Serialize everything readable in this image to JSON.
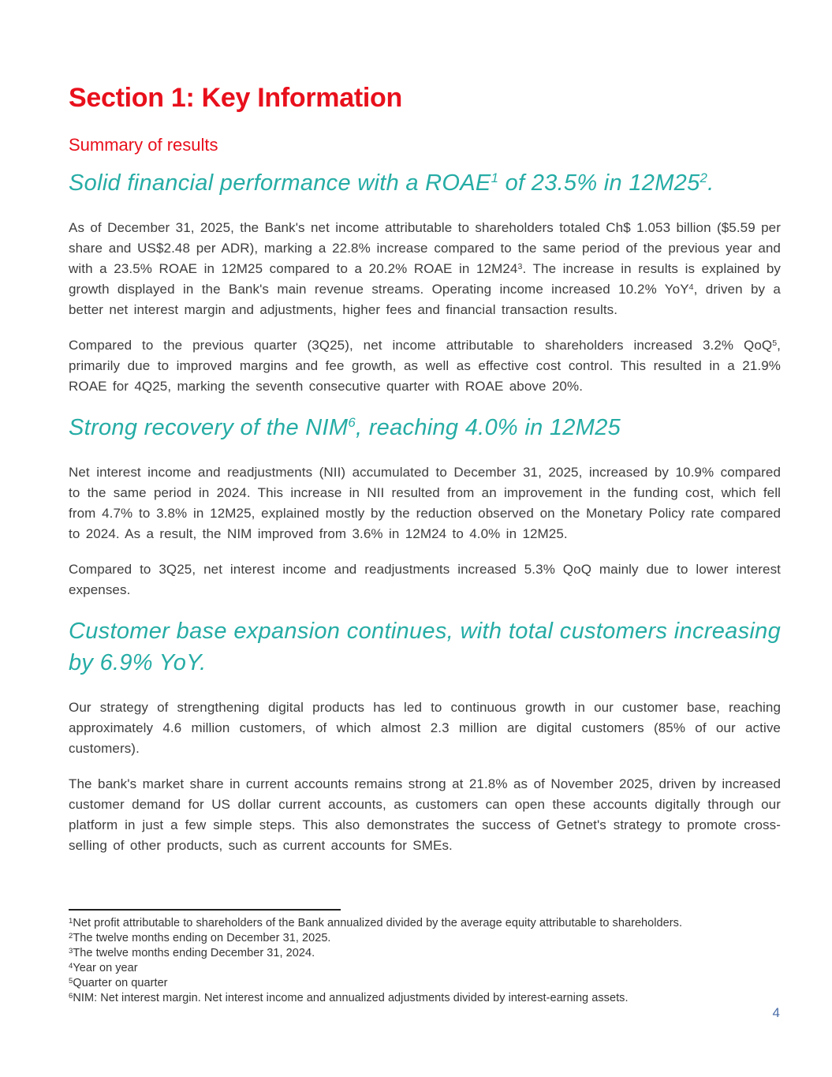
{
  "colors": {
    "brand_red": "#e8101c",
    "teal_accent": "#25aca5",
    "body_text": "#3d3d3d",
    "page_number_blue": "#4a6da9"
  },
  "header": {
    "section_title": "Section 1: Key Information",
    "subsection_title": "Summary of results"
  },
  "headlines": [
    {
      "runs": [
        {
          "t": "Solid financial performance with a ROAE"
        },
        {
          "t": "1",
          "sup": true
        },
        {
          "t": " of 23.5% in 12M25"
        },
        {
          "t": "2",
          "sup": true
        },
        {
          "t": "."
        }
      ]
    },
    {
      "runs": [
        {
          "t": "Strong recovery of the NIM"
        },
        {
          "t": "6",
          "sup": true
        },
        {
          "t": ", reaching 4.0% in 12M25"
        }
      ]
    },
    {
      "runs": [
        {
          "t": "Customer base expansion continues, with total customers increasing by 6.9% YoY."
        }
      ]
    }
  ],
  "paragraphs": [
    {
      "runs": [
        {
          "t": "As of December 31, 2025, the Bank's net income attributable to shareholders totaled Ch$ 1.053 billion ($5.59 per share and US$2.48 per ADR), marking a 22.8% increase compared to the same period of the previous year and with a 23.5% ROAE in 12M25 compared to a 20.2% ROAE in 12M24"
        },
        {
          "t": "3",
          "sup": true
        },
        {
          "t": ". The increase in results is explained by growth displayed in the Bank's main revenue streams. Operating income increased 10.2% YoY"
        },
        {
          "t": "4",
          "sup": true
        },
        {
          "t": ", driven by a better net interest margin and adjustments, higher fees and financial transaction results."
        }
      ]
    },
    {
      "runs": [
        {
          "t": "Compared to the previous quarter (3Q25), net income attributable to shareholders increased 3.2% QoQ"
        },
        {
          "t": "5",
          "sup": true
        },
        {
          "t": ", primarily due to improved margins and fee growth, as well as effective cost control. This resulted in a 21.9% ROAE for 4Q25, marking the seventh consecutive quarter with ROAE above 20%."
        }
      ]
    },
    {
      "runs": [
        {
          "t": "Net interest income and readjustments (NII) accumulated to December 31, 2025, increased by 10.9% compared to the same period in 2024. This increase in NII resulted from an improvement in the funding cost, which fell from 4.7% to 3.8% in 12M25, explained mostly by the reduction observed on the Monetary Policy rate compared to 2024. As a result, the NIM improved from 3.6% in 12M24 to 4.0% in 12M25."
        }
      ]
    },
    {
      "runs": [
        {
          "t": "Compared to 3Q25, net interest income and readjustments increased 5.3% QoQ mainly due to lower interest expenses."
        }
      ]
    },
    {
      "runs": [
        {
          "t": "Our strategy of strengthening digital products has led to continuous growth in our customer base, reaching approximately 4.6 million customers, of which almost 2.3 million are digital customers (85% of our active customers)."
        }
      ]
    },
    {
      "runs": [
        {
          "t": "The bank's market share in current accounts remains strong at 21.8% as of November 2025, driven by increased customer demand for US dollar current accounts, as customers can open these accounts digitally through our platform in just a few simple steps. This also demonstrates the success of Getnet's strategy to promote cross-selling of other products, such as current accounts for SMEs."
        }
      ]
    }
  ],
  "footnotes": {
    "items": [
      {
        "runs": [
          {
            "t": "1",
            "sup": true
          },
          {
            "t": "Net profit attributable to shareholders of the Bank annualized divided by the average equity attributable to shareholders."
          }
        ]
      },
      {
        "runs": [
          {
            "t": "2",
            "sup": true
          },
          {
            "t": "The twelve months ending on December 31, 2025."
          }
        ]
      },
      {
        "runs": [
          {
            "t": "3",
            "sup": true
          },
          {
            "t": "The twelve months ending December 31, 2024."
          }
        ]
      },
      {
        "runs": [
          {
            "t": "4",
            "sup": true
          },
          {
            "t": "Year on year"
          }
        ]
      },
      {
        "runs": [
          {
            "t": "5",
            "sup": true
          },
          {
            "t": "Quarter on quarter"
          }
        ]
      },
      {
        "runs": [
          {
            "t": "6",
            "sup": true
          },
          {
            "t": "NIM: Net interest margin. Net interest income and annualized adjustments divided by interest-earning assets."
          }
        ]
      }
    ]
  },
  "page": {
    "number": "4"
  }
}
